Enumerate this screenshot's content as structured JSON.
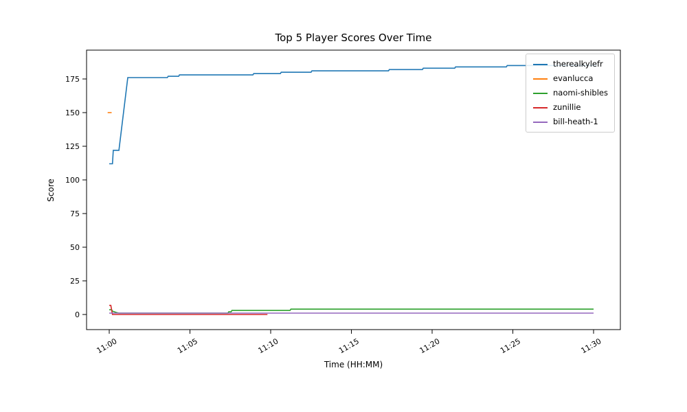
{
  "figure": {
    "title": "Top 5 Player Scores Over Time",
    "background_color": "#ffffff",
    "frame_color": "#000000"
  },
  "chart_data": {
    "type": "line",
    "title": "Top 5 Player Scores Over Time",
    "xlabel": "Time (HH:MM)",
    "ylabel": "Score",
    "grid": false,
    "legend_position": "upper right",
    "x_unit": "minutes after 11:00",
    "x_tick_minutes": [
      0,
      5,
      10,
      15,
      20,
      25,
      30
    ],
    "x_tick_labels": [
      "11:00",
      "11:05",
      "11:10",
      "11:15",
      "11:20",
      "11:25",
      "11:30"
    ],
    "y_ticks": [
      0,
      25,
      50,
      75,
      100,
      125,
      150,
      175
    ],
    "xlim": [
      -1.4,
      31.7
    ],
    "ylim": [
      -10.5,
      197
    ],
    "series": [
      {
        "name": "therealkylefr",
        "color": "#1f77b4",
        "points": [
          [
            0,
            112
          ],
          [
            0.2,
            112
          ],
          [
            0.25,
            122
          ],
          [
            0.6,
            122
          ],
          [
            1.15,
            176
          ],
          [
            3.6,
            176
          ],
          [
            3.65,
            177
          ],
          [
            4.3,
            177
          ],
          [
            4.35,
            178
          ],
          [
            8.9,
            178
          ],
          [
            8.95,
            179
          ],
          [
            10.6,
            179
          ],
          [
            10.65,
            180
          ],
          [
            12.5,
            180
          ],
          [
            12.55,
            181
          ],
          [
            17.3,
            181
          ],
          [
            17.35,
            182
          ],
          [
            19.4,
            182
          ],
          [
            19.45,
            183
          ],
          [
            21.4,
            183
          ],
          [
            21.45,
            184
          ],
          [
            24.6,
            184
          ],
          [
            24.65,
            185
          ],
          [
            30.2,
            185
          ]
        ]
      },
      {
        "name": "evanlucca",
        "color": "#ff7f0e",
        "points": [
          [
            -0.1,
            150
          ],
          [
            0.15,
            150
          ]
        ]
      },
      {
        "name": "naomi-shibles",
        "color": "#2ca02c",
        "points": [
          [
            0,
            3.5
          ],
          [
            0.15,
            3.5
          ],
          [
            0.2,
            2.5
          ],
          [
            0.45,
            1.5
          ],
          [
            0.6,
            1
          ],
          [
            7.35,
            1
          ],
          [
            7.4,
            2
          ],
          [
            7.55,
            2
          ],
          [
            7.6,
            3
          ],
          [
            11.2,
            3
          ],
          [
            11.25,
            4
          ],
          [
            30,
            4
          ]
        ]
      },
      {
        "name": "zunillie",
        "color": "#d62728",
        "points": [
          [
            0,
            6.8
          ],
          [
            0.1,
            6.8
          ],
          [
            0.2,
            0
          ],
          [
            9.8,
            0
          ]
        ]
      },
      {
        "name": "bill-heath-1",
        "color": "#9467bd",
        "points": [
          [
            0,
            1
          ],
          [
            30,
            1
          ]
        ]
      }
    ]
  }
}
